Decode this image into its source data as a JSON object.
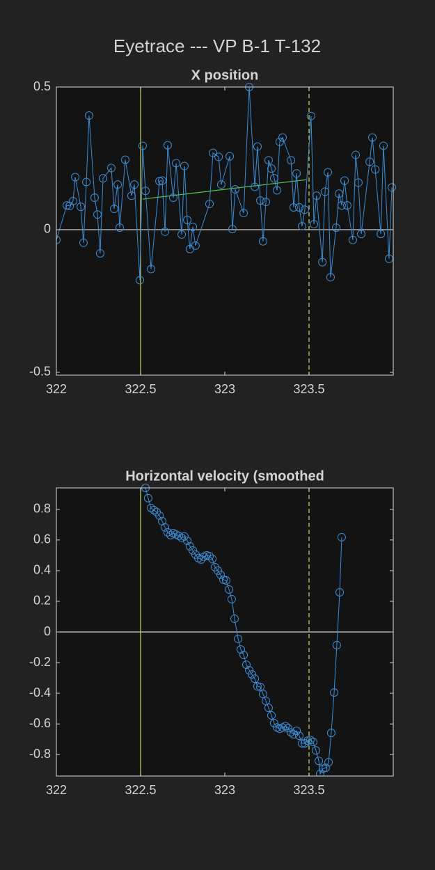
{
  "title": "Eyetrace --- VP B-1 T-132",
  "chart_data": [
    {
      "type": "line",
      "title": "X position",
      "color": "#3a8fd8",
      "markers": "circle",
      "zero_line": true,
      "xlim": [
        322,
        324
      ],
      "ylim": [
        -0.51,
        0.5
      ],
      "xticks": [
        322,
        322.5,
        323,
        323.5
      ],
      "yticks": [
        -0.5,
        0,
        0.5
      ],
      "vlines": [
        {
          "x": 322.5,
          "color": "#d6d64a",
          "style": "solid"
        },
        {
          "x": 323.5,
          "color": "#d6d64a",
          "style": "dashed"
        }
      ],
      "fit": {
        "x": [
          322.512,
          323.483
        ],
        "values": [
          0.107,
          0.175
        ],
        "color": "#4ec94e"
      },
      "x": [
        322.0,
        322.062,
        322.079,
        322.099,
        322.112,
        322.145,
        322.161,
        322.178,
        322.194,
        322.227,
        322.244,
        322.26,
        322.277,
        322.326,
        322.343,
        322.364,
        322.376,
        322.409,
        322.446,
        322.463,
        322.496,
        322.512,
        322.529,
        322.562,
        322.612,
        322.628,
        322.645,
        322.661,
        322.694,
        322.711,
        322.744,
        322.76,
        322.777,
        322.793,
        322.81,
        322.826,
        322.909,
        322.93,
        322.963,
        322.979,
        323.029,
        323.045,
        323.062,
        323.112,
        323.145,
        323.178,
        323.194,
        323.211,
        323.227,
        323.244,
        323.26,
        323.277,
        323.293,
        323.31,
        323.326,
        323.343,
        323.393,
        323.409,
        323.426,
        323.442,
        323.459,
        323.475,
        323.512,
        323.529,
        323.545,
        323.579,
        323.595,
        323.612,
        323.628,
        323.661,
        323.678,
        323.694,
        323.711,
        323.727,
        323.76,
        323.777,
        323.793,
        323.81,
        323.86,
        323.876,
        323.893,
        323.926,
        323.942,
        323.975,
        323.992
      ],
      "values": [
        -0.036,
        0.085,
        0.083,
        0.1,
        0.184,
        0.08,
        -0.046,
        0.167,
        0.4,
        0.112,
        0.053,
        -0.083,
        0.18,
        0.216,
        0.073,
        0.158,
        0.007,
        0.245,
        0.119,
        0.158,
        -0.177,
        0.294,
        0.136,
        -0.138,
        0.17,
        0.172,
        -0.007,
        0.296,
        0.112,
        0.233,
        -0.017,
        0.223,
        0.034,
        -0.068,
        0.01,
        -0.056,
        0.09,
        0.269,
        0.255,
        0.158,
        0.257,
        0.002,
        0.141,
        0.058,
        0.5,
        0.15,
        0.291,
        0.102,
        -0.041,
        0.097,
        0.243,
        0.214,
        0.18,
        0.138,
        0.308,
        0.323,
        0.243,
        0.078,
        0.197,
        0.078,
        0.012,
        0.07,
        0.398,
        0.019,
        0.119,
        -0.114,
        0.133,
        0.201,
        -0.167,
        0.007,
        0.126,
        0.085,
        0.172,
        0.085,
        -0.036,
        0.262,
        0.165,
        -0.015,
        0.238,
        0.323,
        0.211,
        -0.015,
        0.294,
        -0.102,
        0.148
      ]
    },
    {
      "type": "line",
      "title": "Horizontal velocity (smoothed",
      "color": "#3a8fd8",
      "markers": "circle",
      "zero_line": true,
      "xlim": [
        322,
        324
      ],
      "ylim": [
        -0.94,
        0.94
      ],
      "xticks": [
        322,
        322.5,
        323,
        323.5
      ],
      "yticks": [
        -0.8,
        -0.6,
        -0.4,
        -0.2,
        0,
        0.2,
        0.4,
        0.6,
        0.8
      ],
      "vlines": [
        {
          "x": 322.5,
          "color": "#d6d64a",
          "style": "solid"
        },
        {
          "x": 323.5,
          "color": "#d6d64a",
          "style": "dashed"
        }
      ],
      "x": [
        322.529,
        322.545,
        322.562,
        322.579,
        322.595,
        322.612,
        322.628,
        322.645,
        322.661,
        322.678,
        322.694,
        322.711,
        322.727,
        322.744,
        322.76,
        322.777,
        322.793,
        322.81,
        322.826,
        322.843,
        322.86,
        322.876,
        322.893,
        322.909,
        322.926,
        322.942,
        322.959,
        322.975,
        322.992,
        323.008,
        323.025,
        323.041,
        323.058,
        323.079,
        323.095,
        323.112,
        323.128,
        323.145,
        323.161,
        323.178,
        323.194,
        323.211,
        323.227,
        323.244,
        323.26,
        323.277,
        323.293,
        323.31,
        323.326,
        323.343,
        323.36,
        323.376,
        323.393,
        323.409,
        323.426,
        323.442,
        323.459,
        323.475,
        323.492,
        323.508,
        323.525,
        323.541,
        323.558,
        323.566,
        323.583,
        323.599,
        323.616,
        323.632,
        323.649,
        323.665,
        323.682,
        323.694
      ],
      "values": [
        0.94,
        0.873,
        0.809,
        0.795,
        0.782,
        0.759,
        0.723,
        0.682,
        0.65,
        0.632,
        0.645,
        0.636,
        0.627,
        0.614,
        0.623,
        0.595,
        0.559,
        0.532,
        0.505,
        0.482,
        0.473,
        0.491,
        0.5,
        0.495,
        0.477,
        0.423,
        0.4,
        0.373,
        0.341,
        0.336,
        0.277,
        0.214,
        0.086,
        -0.045,
        -0.114,
        -0.15,
        -0.214,
        -0.25,
        -0.277,
        -0.305,
        -0.355,
        -0.359,
        -0.405,
        -0.45,
        -0.495,
        -0.545,
        -0.595,
        -0.623,
        -0.632,
        -0.623,
        -0.614,
        -0.627,
        -0.655,
        -0.668,
        -0.645,
        -0.677,
        -0.727,
        -0.727,
        -0.709,
        -0.705,
        -0.718,
        -0.773,
        -0.841,
        -0.927,
        -0.891,
        -0.886,
        -0.85,
        -0.659,
        -0.395,
        -0.086,
        0.259,
        0.618
      ]
    }
  ]
}
